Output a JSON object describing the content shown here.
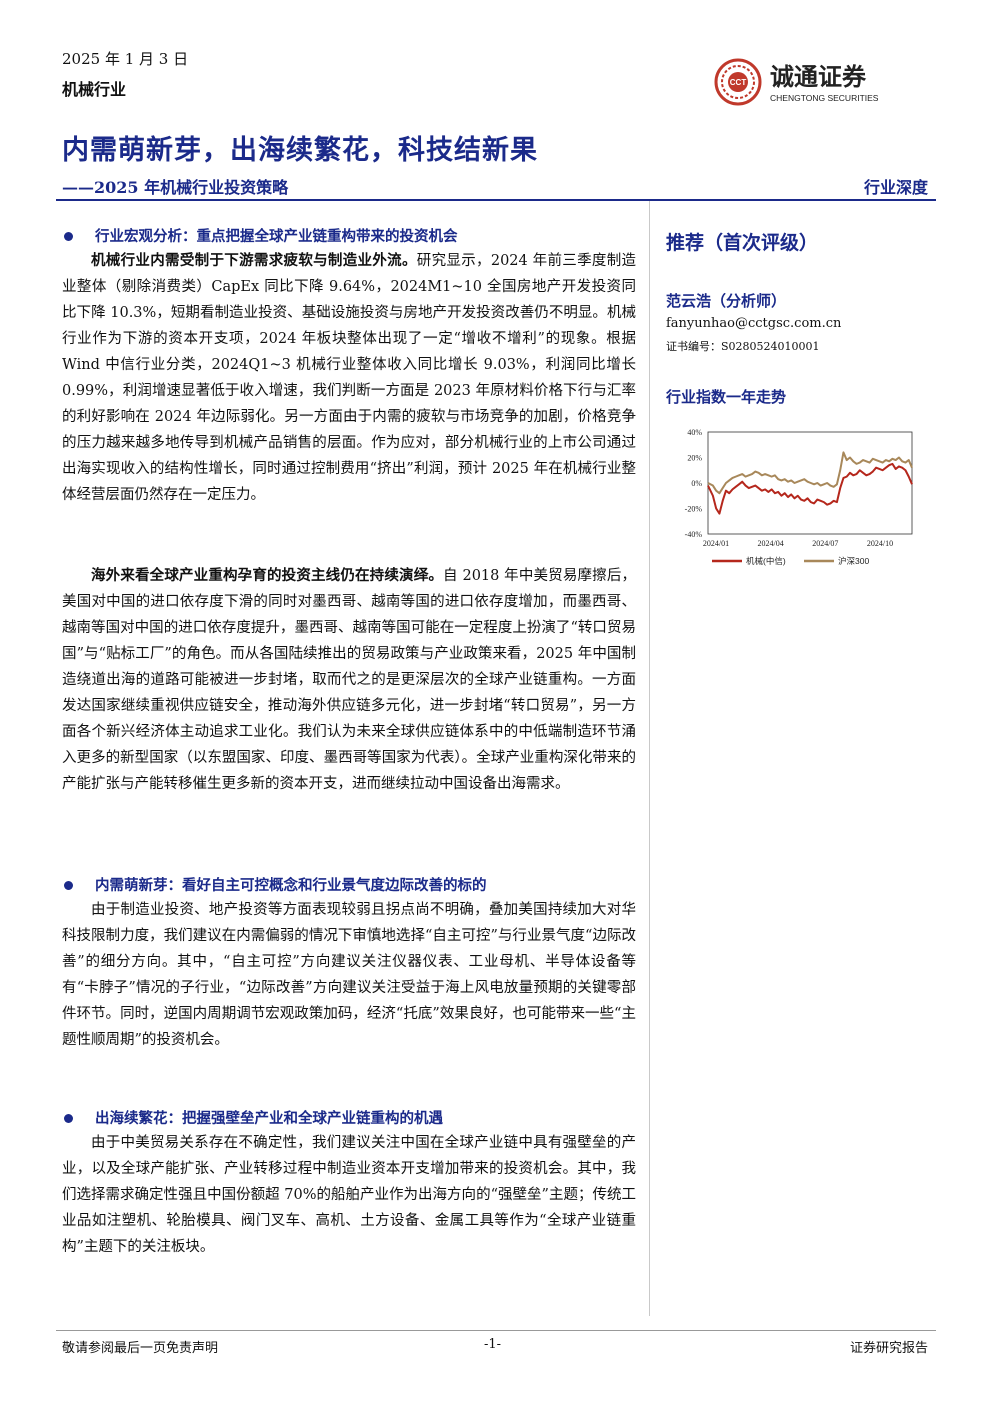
{
  "header": {
    "date": "2025 年 1 月 3 日",
    "industry": "机械行业",
    "logo_text": "诚通证券",
    "logo_sub": "CHENGTONG SECURITIES",
    "logo_mark": "CCT",
    "title": "内需萌新芽，出海续繁花，科技结新果",
    "subtitle": "——2025 年机械行业投资策略",
    "report_type": "行业深度"
  },
  "sidebar": {
    "rating": "推荐（首次评级）",
    "analyst": "范云浩（分析师）",
    "email": "fanyunhao@cctgsc.com.cn",
    "cert": "证书编号：S0280524010001",
    "chart_title": "行业指数一年走势"
  },
  "sections": [
    {
      "heading": "行业宏观分析：重点把握全球产业链重构带来的投资机会",
      "paragraphs": [
        {
          "lead": "机械行业内需受制于下游需求疲软与制造业外流。",
          "text": "研究显示，2024 年前三季度制造业整体（剔除消费类）CapEx 同比下降 9.64%，2024M1~10 全国房地产开发投资同比下降 10.3%，短期看制造业投资、基础设施投资与房地产开发投资改善仍不明显。机械行业作为下游的资本开支项，2024 年板块整体出现了一定“增收不增利”的现象。根据 Wind 中信行业分类，2024Q1~3 机械行业整体收入同比增长 9.03%，利润同比增长 0.99%，利润增速显著低于收入增速，我们判断一方面是 2023 年原材料价格下行与汇率的利好影响在 2024 年边际弱化。另一方面由于内需的疲软与市场竞争的加剧，价格竞争的压力越来越多地传导到机械产品销售的层面。作为应对，部分机械行业的上市公司通过出海实现收入的结构性增长，同时通过控制费用“挤出”利润，预计 2025 年在机械行业整体经营层面仍然存在一定压力。"
        },
        {
          "lead": "海外来看全球产业重构孕育的投资主线仍在持续演绎。",
          "text": "自 2018 年中美贸易摩擦后，美国对中国的进口依存度下滑的同时对墨西哥、越南等国的进口依存度增加，而墨西哥、越南等国对中国的进口依存度提升，墨西哥、越南等国可能在一定程度上扮演了“转口贸易国”与“贴标工厂”的角色。而从各国陆续推出的贸易政策与产业政策来看，2025 年中国制造绕道出海的道路可能被进一步封堵，取而代之的是更深层次的全球产业链重构。一方面发达国家继续重视供应链安全，推动海外供应链多元化，进一步封堵“转口贸易”，另一方面各个新兴经济体主动追求工业化。我们认为未来全球供应链体系中的中低端制造环节涌入更多的新型国家（以东盟国家、印度、墨西哥等国家为代表）。全球产业重构深化带来的产能扩张与产能转移催生更多新的资本开支，进而继续拉动中国设备出海需求。"
        }
      ]
    },
    {
      "heading": "内需萌新芽：看好自主可控概念和行业景气度边际改善的标的",
      "paragraphs": [
        {
          "lead": "",
          "text": "由于制造业投资、地产投资等方面表现较弱且拐点尚不明确，叠加美国持续加大对华科技限制力度，我们建议在内需偏弱的情况下审慎地选择“自主可控”与行业景气度“边际改善”的细分方向。其中，“自主可控”方向建议关注仪器仪表、工业母机、半导体设备等有“卡脖子”情况的子行业，“边际改善”方向建议关注受益于海上风电放量预期的关键零部件环节。同时，逆国内周期调节宏观政策加码，经济“托底”效果良好，也可能带来一些“主题性顺周期”的投资机会。"
        }
      ]
    },
    {
      "heading": "出海续繁花：把握强壁垒产业和全球产业链重构的机遇",
      "paragraphs": [
        {
          "lead": "",
          "text": "由于中美贸易关系存在不确定性，我们建议关注中国在全球产业链中具有强壁垒的产业，以及全球产能扩张、产业转移过程中制造业资本开支增加带来的投资机会。其中，我们选择需求确定性强且中国份额超 70%的船舶产业作为出海方向的“强壁垒”主题；传统工业品如注塑机、轮胎模具、阀门叉车、高机、土方设备、金属工具等作为“全球产业链重构”主题下的关注板块。"
        }
      ]
    }
  ],
  "footer": {
    "left": "敬请参阅最后一页免责声明",
    "center": "-1-",
    "right": "证券研究报告"
  },
  "colors": {
    "brand": "#1b2a8a",
    "series1": "#b5271c",
    "series2": "#a8885a"
  },
  "chart_data": {
    "type": "line",
    "title": "行业指数一年走势",
    "ylim": [
      -40,
      40
    ],
    "yticks": [
      "40%",
      "20%",
      "0%",
      "-20%",
      "-40%"
    ],
    "ytick_values": [
      40,
      20,
      0,
      -20,
      -40
    ],
    "xticks": [
      "2024/01",
      "2024/04",
      "2024/07",
      "2024/10"
    ],
    "x": [
      0,
      6,
      10,
      14,
      18,
      22,
      26,
      30,
      34,
      38,
      42,
      46,
      50,
      54,
      58,
      62,
      66,
      70,
      74,
      78,
      82,
      86,
      90,
      94,
      98,
      102,
      106,
      110,
      114,
      118,
      122,
      126,
      130,
      134,
      138,
      142,
      146,
      150,
      154,
      158,
      162,
      166,
      170,
      174,
      178,
      182,
      186,
      190,
      194,
      198,
      202,
      206,
      210,
      214,
      218,
      222,
      226,
      230,
      234,
      238,
      242,
      246,
      250
    ],
    "series": [
      {
        "name": "机械(中信)",
        "values": [
          -2,
          -10,
          -20,
          -24,
          -14,
          -6,
          -8,
          -5,
          -3,
          -1,
          1,
          -2,
          -4,
          -3,
          -2,
          -4,
          -6,
          -5,
          -7,
          -5,
          -8,
          -7,
          -10,
          -8,
          -11,
          -9,
          -12,
          -10,
          -13,
          -14,
          -12,
          -15,
          -16,
          -13,
          -14,
          -15,
          -17,
          -16,
          -14,
          -15,
          -4,
          4,
          5,
          8,
          6,
          7,
          10,
          8,
          6,
          7,
          9,
          12,
          11,
          10,
          12,
          14,
          15,
          11,
          13,
          12,
          10,
          5,
          -1
        ]
      },
      {
        "name": "沪深300",
        "values": [
          0,
          -2,
          -6,
          -8,
          -4,
          0,
          2,
          4,
          5,
          6,
          7,
          5,
          6,
          7,
          9,
          8,
          6,
          7,
          6,
          5,
          6,
          3,
          2,
          3,
          1,
          2,
          0,
          1,
          2,
          3,
          1,
          0,
          -1,
          0,
          -2,
          -1,
          0,
          -2,
          -3,
          -1,
          10,
          24,
          18,
          20,
          17,
          15,
          16,
          18,
          17,
          16,
          19,
          18,
          17,
          16,
          18,
          17,
          19,
          18,
          20,
          17,
          16,
          18,
          12
        ]
      }
    ]
  }
}
